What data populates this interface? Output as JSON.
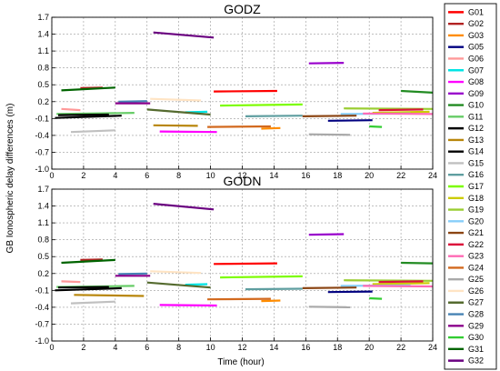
{
  "figure": {
    "ylabel": "GB Ionospheric delay differences (m)",
    "xlabel": "Time (hour)"
  },
  "chart_data": [
    {
      "type": "line",
      "title": "GODZ",
      "xlabel": "Time (hour)",
      "ylabel": "GB Ionospheric delay differences (m)",
      "xlim": [
        0,
        24
      ],
      "ylim": [
        -1.0,
        1.7
      ],
      "xticks": [
        "0",
        "2",
        "4",
        "6",
        "8",
        "10",
        "12",
        "14",
        "16",
        "18",
        "20",
        "22",
        "24"
      ],
      "yticks": [
        "-1.0",
        "-0.7",
        "-0.4",
        "-0.1",
        "0.2",
        "0.5",
        "0.8",
        "1.1",
        "1.4",
        "1.7"
      ],
      "grid": true,
      "series": [
        {
          "name": "G01",
          "color": "#ff0000",
          "x": [
            10.2,
            14.2
          ],
          "y": [
            0.38,
            0.39
          ]
        },
        {
          "name": "G02",
          "color": "#b22222",
          "x": [
            1.8,
            3.2
          ],
          "y": [
            0.44,
            0.45
          ]
        },
        {
          "name": "G03",
          "color": "#ff8c00",
          "x": [
            13.2,
            14.4
          ],
          "y": [
            -0.28,
            -0.27
          ]
        },
        {
          "name": "G05",
          "color": "#000080",
          "x": [
            17.4,
            20.2
          ],
          "y": [
            -0.14,
            -0.13
          ]
        },
        {
          "name": "G06",
          "color": "#ff9999",
          "x": [
            0.6,
            1.8
          ],
          "y": [
            0.07,
            0.05
          ]
        },
        {
          "name": "G07",
          "color": "#00e5e5",
          "x": [
            8.4,
            9.8
          ],
          "y": [
            0.01,
            0.02
          ]
        },
        {
          "name": "G08",
          "color": "#ff00ff",
          "x": [
            6.8,
            10.4
          ],
          "y": [
            -0.33,
            -0.34
          ]
        },
        {
          "name": "G09",
          "color": "#9900cc",
          "x": [
            16.2,
            18.4
          ],
          "y": [
            0.88,
            0.89
          ]
        },
        {
          "name": "G10",
          "color": "#228b22",
          "x": [
            22.0,
            24.0
          ],
          "y": [
            0.39,
            0.36
          ]
        },
        {
          "name": "G11",
          "color": "#66cc66",
          "x": [
            0.3,
            5.2
          ],
          "y": [
            -0.02,
            0.0
          ]
        },
        {
          "name": "G12",
          "color": "#000000",
          "x": [
            0.2,
            4.4
          ],
          "y": [
            -0.09,
            -0.05
          ]
        },
        {
          "name": "G13",
          "color": "#b8860b",
          "x": [
            6.4,
            9.2
          ],
          "y": [
            -0.22,
            -0.23
          ]
        },
        {
          "name": "G14",
          "color": "#000000",
          "x": [
            0.4,
            3.6
          ],
          "y": [
            -0.04,
            -0.03
          ]
        },
        {
          "name": "G15",
          "color": "#c0c0c0",
          "x": [
            1.2,
            4.0
          ],
          "y": [
            -0.34,
            -0.31
          ]
        },
        {
          "name": "G16",
          "color": "#5f9ea0",
          "x": [
            12.2,
            15.8
          ],
          "y": [
            -0.06,
            -0.05
          ]
        },
        {
          "name": "G17",
          "color": "#7cfc00",
          "x": [
            10.6,
            15.8
          ],
          "y": [
            0.13,
            0.15
          ]
        },
        {
          "name": "G18",
          "color": "#cccc00",
          "x": [
            20.2,
            23.8
          ],
          "y": [
            0.0,
            0.02
          ]
        },
        {
          "name": "G19",
          "color": "#9acd32",
          "x": [
            18.4,
            24.0
          ],
          "y": [
            0.08,
            0.07
          ]
        },
        {
          "name": "G20",
          "color": "#87cefa",
          "x": [
            18.2,
            22.6
          ],
          "y": [
            -0.02,
            -0.01
          ]
        },
        {
          "name": "G21",
          "color": "#8b4513",
          "x": [
            15.8,
            19.2
          ],
          "y": [
            -0.06,
            -0.05
          ]
        },
        {
          "name": "G22",
          "color": "#dc143c",
          "x": [
            20.6,
            23.4
          ],
          "y": [
            0.05,
            0.06
          ]
        },
        {
          "name": "G23",
          "color": "#ff69b4",
          "x": [
            19.6,
            24.0
          ],
          "y": [
            -0.01,
            -0.02
          ]
        },
        {
          "name": "G24",
          "color": "#d2691e",
          "x": [
            9.8,
            13.8
          ],
          "y": [
            -0.25,
            -0.24
          ]
        },
        {
          "name": "G25",
          "color": "#a9a9a9",
          "x": [
            16.2,
            18.8
          ],
          "y": [
            -0.38,
            -0.39
          ]
        },
        {
          "name": "G26",
          "color": "#ffe4c4",
          "x": [
            6.2,
            9.4
          ],
          "y": [
            0.25,
            0.22
          ]
        },
        {
          "name": "G27",
          "color": "#556b2f",
          "x": [
            6.0,
            10.0
          ],
          "y": [
            0.06,
            -0.03
          ]
        },
        {
          "name": "G28",
          "color": "#4682b4",
          "x": [
            4.2,
            6.0
          ],
          "y": [
            0.2,
            0.21
          ]
        },
        {
          "name": "G29",
          "color": "#8b008b",
          "x": [
            4.0,
            6.2
          ],
          "y": [
            0.17,
            0.17
          ]
        },
        {
          "name": "G30",
          "color": "#32cd32",
          "x": [
            20.0,
            20.8
          ],
          "y": [
            -0.24,
            -0.25
          ]
        },
        {
          "name": "G31",
          "color": "#006400",
          "x": [
            0.6,
            4.0
          ],
          "y": [
            0.4,
            0.45
          ]
        },
        {
          "name": "G32",
          "color": "#6a0080",
          "x": [
            6.4,
            10.2
          ],
          "y": [
            1.43,
            1.34
          ]
        }
      ]
    },
    {
      "type": "line",
      "title": "GODN",
      "xlabel": "Time (hour)",
      "ylabel": "GB Ionospheric delay differences (m)",
      "xlim": [
        0,
        24
      ],
      "ylim": [
        -1.0,
        1.7
      ],
      "xticks": [
        "0",
        "2",
        "4",
        "6",
        "8",
        "10",
        "12",
        "14",
        "16",
        "18",
        "20",
        "22",
        "24"
      ],
      "yticks": [
        "-1.0",
        "-0.7",
        "-0.4",
        "-0.1",
        "0.2",
        "0.5",
        "0.8",
        "1.1",
        "1.4",
        "1.7"
      ],
      "grid": true,
      "series": [
        {
          "name": "G01",
          "color": "#ff0000",
          "x": [
            10.2,
            14.2
          ],
          "y": [
            0.37,
            0.38
          ]
        },
        {
          "name": "G02",
          "color": "#b22222",
          "x": [
            1.8,
            3.2
          ],
          "y": [
            0.44,
            0.45
          ]
        },
        {
          "name": "G03",
          "color": "#ff8c00",
          "x": [
            13.2,
            14.4
          ],
          "y": [
            -0.29,
            -0.28
          ]
        },
        {
          "name": "G05",
          "color": "#000080",
          "x": [
            17.4,
            20.2
          ],
          "y": [
            -0.13,
            -0.12
          ]
        },
        {
          "name": "G06",
          "color": "#ff9999",
          "x": [
            0.6,
            1.8
          ],
          "y": [
            0.06,
            0.05
          ]
        },
        {
          "name": "G07",
          "color": "#00e5e5",
          "x": [
            8.4,
            9.8
          ],
          "y": [
            0.0,
            0.01
          ]
        },
        {
          "name": "G08",
          "color": "#ff00ff",
          "x": [
            6.8,
            10.4
          ],
          "y": [
            -0.36,
            -0.37
          ]
        },
        {
          "name": "G09",
          "color": "#9900cc",
          "x": [
            16.2,
            18.4
          ],
          "y": [
            0.89,
            0.9
          ]
        },
        {
          "name": "G10",
          "color": "#228b22",
          "x": [
            22.0,
            24.0
          ],
          "y": [
            0.39,
            0.38
          ]
        },
        {
          "name": "G11",
          "color": "#66cc66",
          "x": [
            0.3,
            5.2
          ],
          "y": [
            -0.04,
            -0.02
          ]
        },
        {
          "name": "G12",
          "color": "#000000",
          "x": [
            0.2,
            4.4
          ],
          "y": [
            -0.1,
            -0.06
          ]
        },
        {
          "name": "G13",
          "color": "#b8860b",
          "x": [
            1.4,
            5.8
          ],
          "y": [
            -0.18,
            -0.2
          ]
        },
        {
          "name": "G14",
          "color": "#000000",
          "x": [
            0.4,
            3.6
          ],
          "y": [
            -0.05,
            -0.04
          ]
        },
        {
          "name": "G15",
          "color": "#c0c0c0",
          "x": [
            1.2,
            4.0
          ],
          "y": [
            -0.33,
            -0.3
          ]
        },
        {
          "name": "G16",
          "color": "#5f9ea0",
          "x": [
            12.2,
            15.8
          ],
          "y": [
            -0.08,
            -0.07
          ]
        },
        {
          "name": "G17",
          "color": "#7cfc00",
          "x": [
            10.6,
            15.8
          ],
          "y": [
            0.13,
            0.15
          ]
        },
        {
          "name": "G18",
          "color": "#cccc00",
          "x": [
            20.2,
            23.8
          ],
          "y": [
            0.01,
            0.03
          ]
        },
        {
          "name": "G19",
          "color": "#9acd32",
          "x": [
            18.4,
            24.0
          ],
          "y": [
            0.08,
            0.07
          ]
        },
        {
          "name": "G20",
          "color": "#87cefa",
          "x": [
            18.2,
            22.6
          ],
          "y": [
            -0.02,
            -0.01
          ]
        },
        {
          "name": "G21",
          "color": "#8b4513",
          "x": [
            15.8,
            19.2
          ],
          "y": [
            -0.06,
            -0.05
          ]
        },
        {
          "name": "G22",
          "color": "#dc143c",
          "x": [
            20.6,
            23.4
          ],
          "y": [
            0.05,
            0.06
          ]
        },
        {
          "name": "G23",
          "color": "#ff69b4",
          "x": [
            19.6,
            24.0
          ],
          "y": [
            -0.02,
            -0.03
          ]
        },
        {
          "name": "G24",
          "color": "#d2691e",
          "x": [
            9.8,
            13.8
          ],
          "y": [
            -0.26,
            -0.25
          ]
        },
        {
          "name": "G25",
          "color": "#a9a9a9",
          "x": [
            16.2,
            18.8
          ],
          "y": [
            -0.39,
            -0.4
          ]
        },
        {
          "name": "G26",
          "color": "#ffe4c4",
          "x": [
            6.2,
            9.4
          ],
          "y": [
            0.24,
            0.21
          ]
        },
        {
          "name": "G27",
          "color": "#556b2f",
          "x": [
            6.0,
            10.0
          ],
          "y": [
            0.04,
            -0.05
          ]
        },
        {
          "name": "G28",
          "color": "#4682b4",
          "x": [
            4.2,
            6.0
          ],
          "y": [
            0.19,
            0.2
          ]
        },
        {
          "name": "G29",
          "color": "#8b008b",
          "x": [
            4.0,
            6.2
          ],
          "y": [
            0.16,
            0.16
          ]
        },
        {
          "name": "G30",
          "color": "#32cd32",
          "x": [
            20.0,
            20.8
          ],
          "y": [
            -0.24,
            -0.25
          ]
        },
        {
          "name": "G31",
          "color": "#006400",
          "x": [
            0.6,
            4.0
          ],
          "y": [
            0.39,
            0.44
          ]
        },
        {
          "name": "G32",
          "color": "#6a0080",
          "x": [
            6.4,
            10.2
          ],
          "y": [
            1.44,
            1.34
          ]
        }
      ]
    }
  ],
  "legend": {
    "placement": "right",
    "entries": [
      {
        "name": "G01",
        "color": "#ff0000"
      },
      {
        "name": "G02",
        "color": "#b22222"
      },
      {
        "name": "G03",
        "color": "#ff8c00"
      },
      {
        "name": "G05",
        "color": "#000080"
      },
      {
        "name": "G06",
        "color": "#ff9999"
      },
      {
        "name": "G07",
        "color": "#00e5e5"
      },
      {
        "name": "G08",
        "color": "#ff00ff"
      },
      {
        "name": "G09",
        "color": "#9900cc"
      },
      {
        "name": "G10",
        "color": "#228b22"
      },
      {
        "name": "G11",
        "color": "#66cc66"
      },
      {
        "name": "G12",
        "color": "#000000"
      },
      {
        "name": "G13",
        "color": "#b8860b"
      },
      {
        "name": "G14",
        "color": "#000000"
      },
      {
        "name": "G15",
        "color": "#c0c0c0"
      },
      {
        "name": "G16",
        "color": "#5f9ea0"
      },
      {
        "name": "G17",
        "color": "#7cfc00"
      },
      {
        "name": "G18",
        "color": "#cccc00"
      },
      {
        "name": "G19",
        "color": "#9acd32"
      },
      {
        "name": "G20",
        "color": "#87cefa"
      },
      {
        "name": "G21",
        "color": "#8b4513"
      },
      {
        "name": "G22",
        "color": "#dc143c"
      },
      {
        "name": "G23",
        "color": "#ff69b4"
      },
      {
        "name": "G24",
        "color": "#d2691e"
      },
      {
        "name": "G25",
        "color": "#a9a9a9"
      },
      {
        "name": "G26",
        "color": "#ffe4c4"
      },
      {
        "name": "G27",
        "color": "#556b2f"
      },
      {
        "name": "G28",
        "color": "#4682b4"
      },
      {
        "name": "G29",
        "color": "#8b008b"
      },
      {
        "name": "G30",
        "color": "#32cd32"
      },
      {
        "name": "G31",
        "color": "#006400"
      },
      {
        "name": "G32",
        "color": "#6a0080"
      }
    ]
  }
}
